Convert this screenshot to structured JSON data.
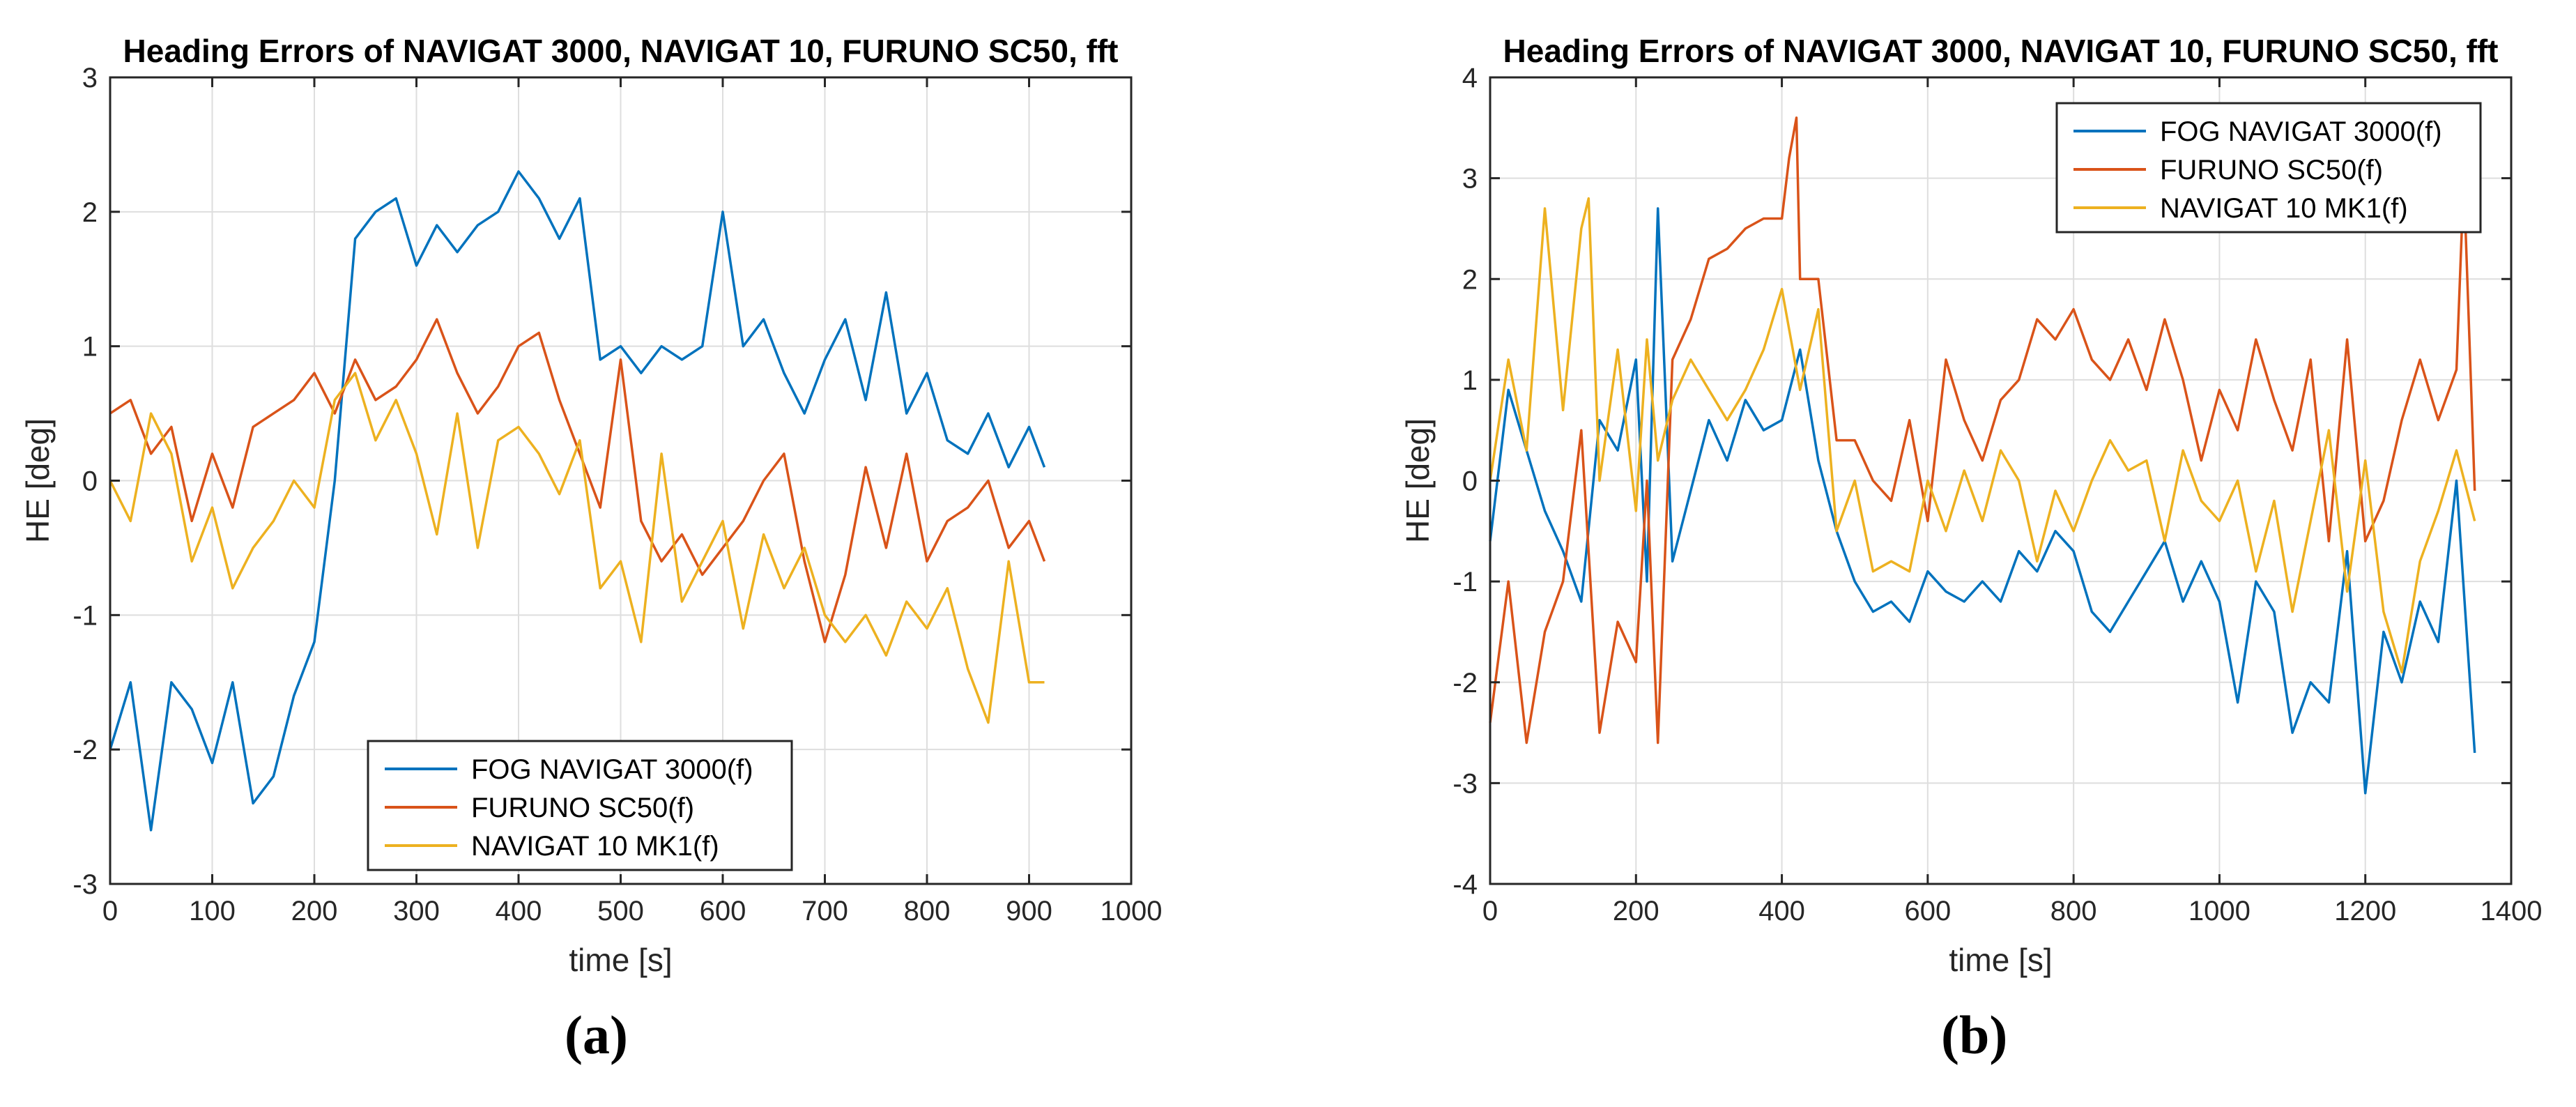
{
  "figure": {
    "caption_a": "(a)",
    "caption_b": "(b)"
  },
  "colors": {
    "fog": "#0072BD",
    "furuno": "#D95319",
    "navigat10": "#EDB120",
    "grid": "#dedede",
    "axis": "#262626"
  },
  "chart_data": [
    {
      "type": "line",
      "title": "Heading Errors of NAVIGAT 3000, NAVIGAT 10, FURUNO SC50, fft",
      "xlabel": "time [s]",
      "ylabel": "HE [deg]",
      "xlim": [
        0,
        1000
      ],
      "ylim": [
        -3,
        3
      ],
      "xticks": [
        0,
        100,
        200,
        300,
        400,
        500,
        600,
        700,
        800,
        900,
        1000
      ],
      "yticks": [
        -3,
        -2,
        -1,
        0,
        1,
        2,
        3
      ],
      "grid": true,
      "legend_position": "bottom-center",
      "series": [
        {
          "name": "FOG NAVIGAT 3000(f)",
          "color_key": "fog",
          "x": [
            0,
            20,
            40,
            60,
            80,
            100,
            120,
            140,
            160,
            180,
            200,
            220,
            240,
            260,
            280,
            300,
            320,
            340,
            360,
            380,
            400,
            420,
            440,
            460,
            480,
            500,
            520,
            540,
            560,
            580,
            600,
            620,
            640,
            660,
            680,
            700,
            720,
            740,
            760,
            780,
            800,
            820,
            840,
            860,
            880,
            900,
            915
          ],
          "y": [
            -2.0,
            -1.5,
            -2.6,
            -1.5,
            -1.7,
            -2.1,
            -1.5,
            -2.4,
            -2.2,
            -1.6,
            -1.2,
            0.0,
            1.8,
            2.0,
            2.1,
            1.6,
            1.9,
            1.7,
            1.9,
            2.0,
            2.3,
            2.1,
            1.8,
            2.1,
            0.9,
            1.0,
            0.8,
            1.0,
            0.9,
            1.0,
            2.0,
            1.0,
            1.2,
            0.8,
            0.5,
            0.9,
            1.2,
            0.6,
            1.4,
            0.5,
            0.8,
            0.3,
            0.2,
            0.5,
            0.1,
            0.4,
            0.1
          ]
        },
        {
          "name": "FURUNO SC50(f)",
          "color_key": "furuno",
          "x": [
            0,
            20,
            40,
            60,
            80,
            100,
            120,
            140,
            160,
            180,
            200,
            220,
            240,
            260,
            280,
            300,
            320,
            340,
            360,
            380,
            400,
            420,
            440,
            460,
            480,
            500,
            520,
            540,
            560,
            580,
            600,
            620,
            640,
            660,
            680,
            700,
            720,
            740,
            760,
            780,
            800,
            820,
            840,
            860,
            880,
            900,
            915
          ],
          "y": [
            0.5,
            0.6,
            0.2,
            0.4,
            -0.3,
            0.2,
            -0.2,
            0.4,
            0.5,
            0.6,
            0.8,
            0.5,
            0.9,
            0.6,
            0.7,
            0.9,
            1.2,
            0.8,
            0.5,
            0.7,
            1.0,
            1.1,
            0.6,
            0.2,
            -0.2,
            0.9,
            -0.3,
            -0.6,
            -0.4,
            -0.7,
            -0.5,
            -0.3,
            0.0,
            0.2,
            -0.6,
            -1.2,
            -0.7,
            0.1,
            -0.5,
            0.2,
            -0.6,
            -0.3,
            -0.2,
            0.0,
            -0.5,
            -0.3,
            -0.6
          ]
        },
        {
          "name": "NAVIGAT 10 MK1(f)",
          "color_key": "navigat10",
          "x": [
            0,
            20,
            40,
            60,
            80,
            100,
            120,
            140,
            160,
            180,
            200,
            220,
            240,
            260,
            280,
            300,
            320,
            340,
            360,
            380,
            400,
            420,
            440,
            460,
            480,
            500,
            520,
            540,
            560,
            580,
            600,
            620,
            640,
            660,
            680,
            700,
            720,
            740,
            760,
            780,
            800,
            820,
            840,
            860,
            880,
            900,
            915
          ],
          "y": [
            0.0,
            -0.3,
            0.5,
            0.2,
            -0.6,
            -0.2,
            -0.8,
            -0.5,
            -0.3,
            0.0,
            -0.2,
            0.6,
            0.8,
            0.3,
            0.6,
            0.2,
            -0.4,
            0.5,
            -0.5,
            0.3,
            0.4,
            0.2,
            -0.1,
            0.3,
            -0.8,
            -0.6,
            -1.2,
            0.2,
            -0.9,
            -0.6,
            -0.3,
            -1.1,
            -0.4,
            -0.8,
            -0.5,
            -1.0,
            -1.2,
            -1.0,
            -1.3,
            -0.9,
            -1.1,
            -0.8,
            -1.4,
            -1.8,
            -0.6,
            -1.5,
            -1.5
          ]
        }
      ]
    },
    {
      "type": "line",
      "title": "Heading Errors of NAVIGAT 3000, NAVIGAT 10, FURUNO SC50, fft",
      "xlabel": "time [s]",
      "ylabel": "HE [deg]",
      "xlim": [
        0,
        1400
      ],
      "ylim": [
        -4,
        4
      ],
      "xticks": [
        0,
        200,
        400,
        600,
        800,
        1000,
        1200,
        1400
      ],
      "yticks": [
        -4,
        -3,
        -2,
        -1,
        0,
        1,
        2,
        3,
        4
      ],
      "grid": true,
      "legend_position": "top-right",
      "series": [
        {
          "name": "FOG NAVIGAT 3000(f)",
          "color_key": "fog",
          "x": [
            0,
            25,
            50,
            75,
            100,
            125,
            150,
            175,
            200,
            215,
            230,
            250,
            275,
            300,
            325,
            350,
            375,
            400,
            425,
            450,
            475,
            500,
            525,
            550,
            575,
            600,
            625,
            650,
            675,
            700,
            725,
            750,
            775,
            800,
            825,
            850,
            875,
            900,
            925,
            950,
            975,
            1000,
            1025,
            1050,
            1075,
            1100,
            1125,
            1150,
            1175,
            1200,
            1225,
            1250,
            1275,
            1300,
            1325,
            1350
          ],
          "y": [
            -0.6,
            0.9,
            0.3,
            -0.3,
            -0.7,
            -1.2,
            0.6,
            0.3,
            1.2,
            -1.0,
            2.7,
            -0.8,
            -0.1,
            0.6,
            0.2,
            0.8,
            0.5,
            0.6,
            1.3,
            0.2,
            -0.5,
            -1.0,
            -1.3,
            -1.2,
            -1.4,
            -0.9,
            -1.1,
            -1.2,
            -1.0,
            -1.2,
            -0.7,
            -0.9,
            -0.5,
            -0.7,
            -1.3,
            -1.5,
            -1.2,
            -0.9,
            -0.6,
            -1.2,
            -0.8,
            -1.2,
            -2.2,
            -1.0,
            -1.3,
            -2.5,
            -2.0,
            -2.2,
            -0.7,
            -3.1,
            -1.5,
            -2.0,
            -1.2,
            -1.6,
            0.0,
            -2.7
          ]
        },
        {
          "name": "FURUNO SC50(f)",
          "color_key": "furuno",
          "x": [
            0,
            25,
            50,
            75,
            100,
            125,
            150,
            175,
            200,
            215,
            230,
            250,
            275,
            300,
            325,
            350,
            375,
            400,
            410,
            420,
            425,
            450,
            475,
            500,
            525,
            550,
            575,
            600,
            625,
            650,
            675,
            700,
            725,
            750,
            775,
            800,
            825,
            850,
            875,
            900,
            925,
            950,
            975,
            1000,
            1025,
            1050,
            1075,
            1100,
            1125,
            1150,
            1175,
            1200,
            1225,
            1250,
            1275,
            1300,
            1325,
            1335,
            1350
          ],
          "y": [
            -2.4,
            -1.0,
            -2.6,
            -1.5,
            -1.0,
            0.5,
            -2.5,
            -1.4,
            -1.8,
            0.0,
            -2.6,
            1.2,
            1.6,
            2.2,
            2.3,
            2.5,
            2.6,
            2.6,
            3.2,
            3.6,
            2.0,
            2.0,
            0.4,
            0.4,
            0.0,
            -0.2,
            0.6,
            -0.4,
            1.2,
            0.6,
            0.2,
            0.8,
            1.0,
            1.6,
            1.4,
            1.7,
            1.2,
            1.0,
            1.4,
            0.9,
            1.6,
            1.0,
            0.2,
            0.9,
            0.5,
            1.4,
            0.8,
            0.3,
            1.2,
            -0.6,
            1.4,
            -0.6,
            -0.2,
            0.6,
            1.2,
            0.6,
            1.1,
            3.0,
            -0.1
          ]
        },
        {
          "name": "NAVIGAT 10 MK1(f)",
          "color_key": "navigat10",
          "x": [
            0,
            25,
            50,
            75,
            100,
            125,
            135,
            150,
            175,
            200,
            215,
            230,
            250,
            275,
            300,
            325,
            350,
            375,
            400,
            425,
            450,
            475,
            500,
            525,
            550,
            575,
            600,
            625,
            650,
            675,
            700,
            725,
            750,
            775,
            800,
            825,
            850,
            875,
            900,
            925,
            950,
            975,
            1000,
            1025,
            1050,
            1075,
            1100,
            1125,
            1150,
            1175,
            1200,
            1225,
            1250,
            1275,
            1300,
            1325,
            1350
          ],
          "y": [
            0.0,
            1.2,
            0.3,
            2.7,
            0.7,
            2.5,
            2.8,
            0.0,
            1.3,
            -0.3,
            1.4,
            0.2,
            0.8,
            1.2,
            0.9,
            0.6,
            0.9,
            1.3,
            1.9,
            0.9,
            1.7,
            -0.5,
            0.0,
            -0.9,
            -0.8,
            -0.9,
            0.0,
            -0.5,
            0.1,
            -0.4,
            0.3,
            0.0,
            -0.8,
            -0.1,
            -0.5,
            0.0,
            0.4,
            0.1,
            0.2,
            -0.6,
            0.3,
            -0.2,
            -0.4,
            0.0,
            -0.9,
            -0.2,
            -1.3,
            -0.4,
            0.5,
            -1.1,
            0.2,
            -1.3,
            -1.9,
            -0.8,
            -0.3,
            0.3,
            -0.4
          ]
        }
      ]
    }
  ]
}
